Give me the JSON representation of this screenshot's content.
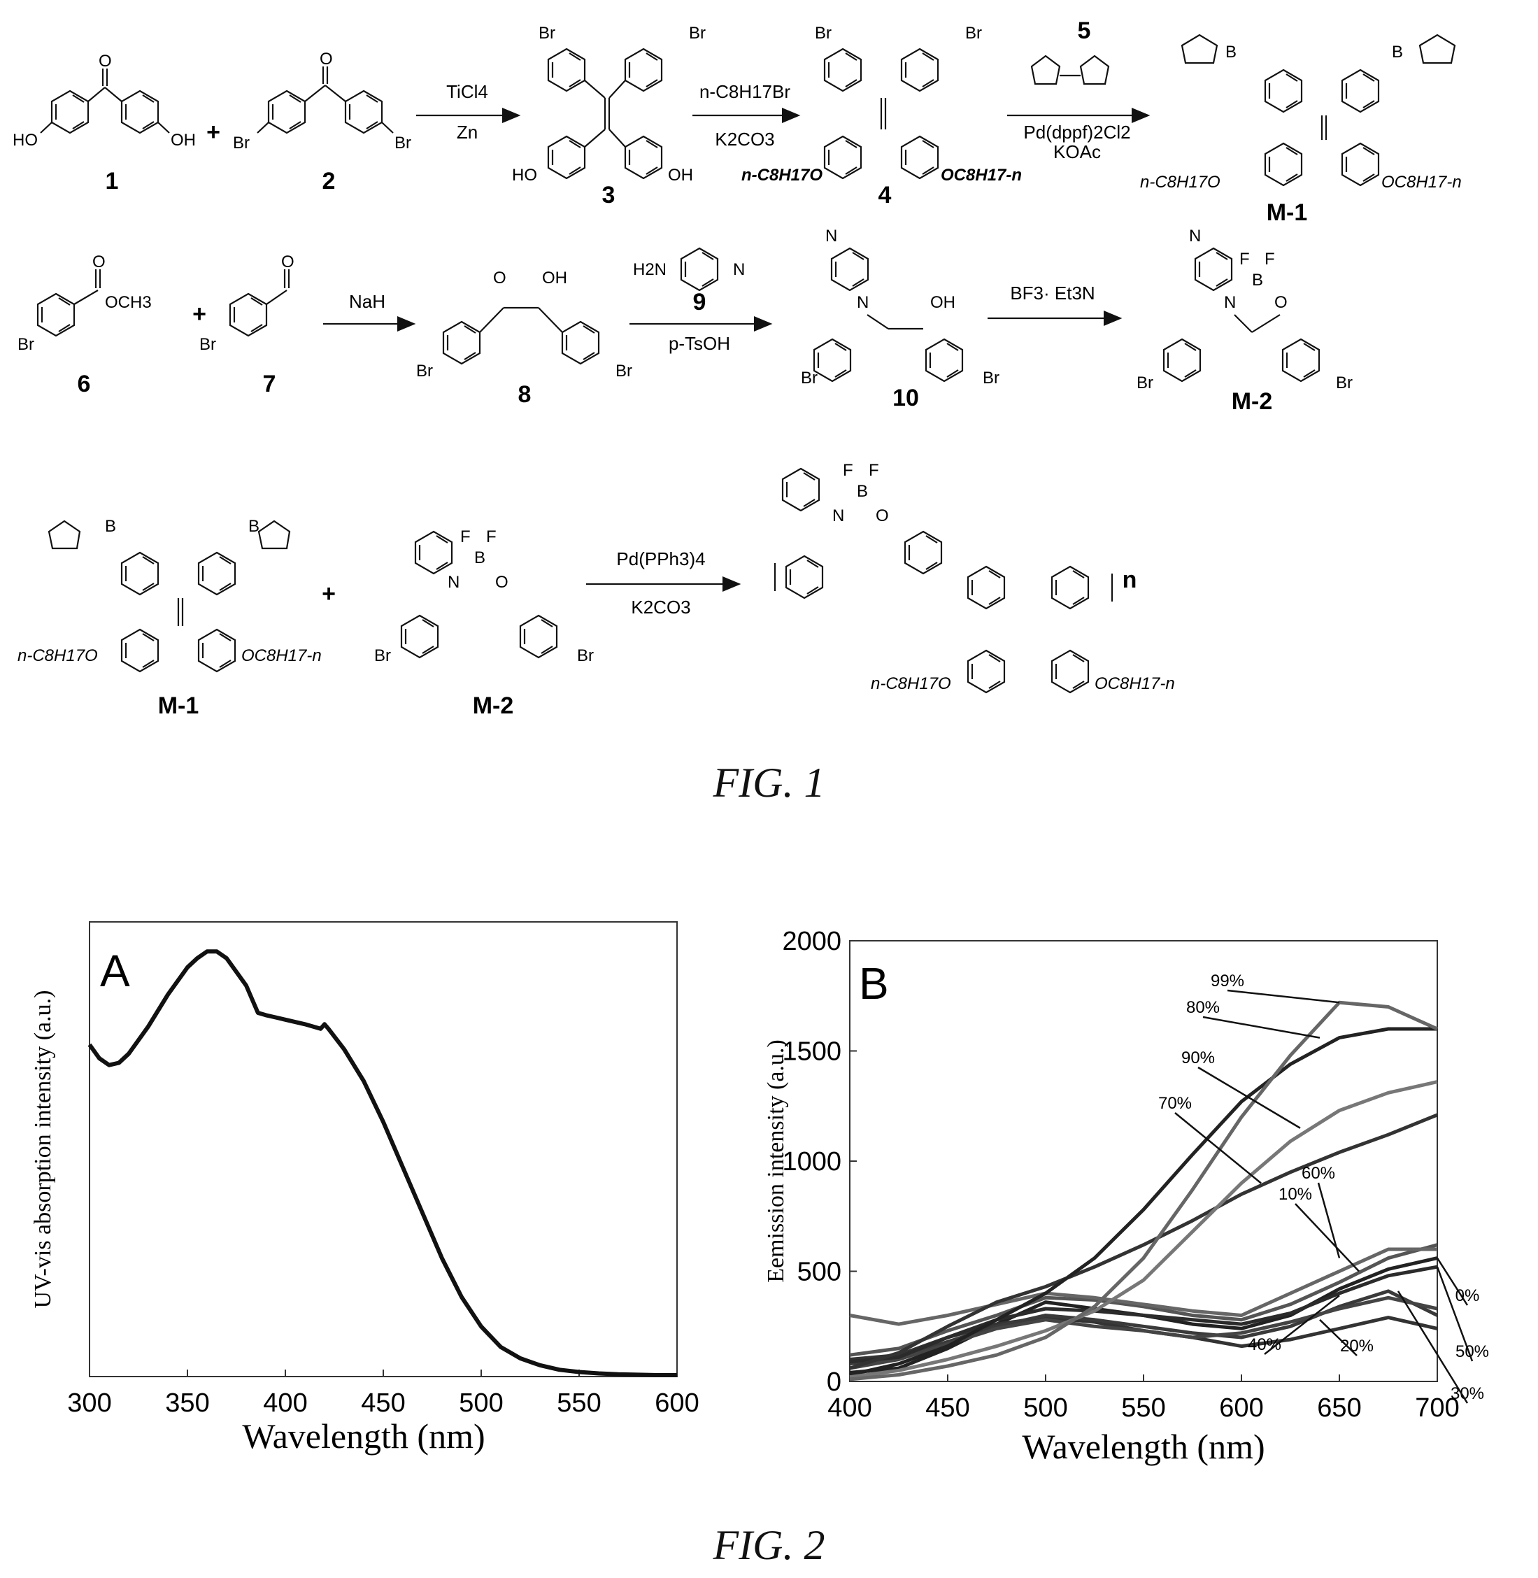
{
  "fig1": {
    "caption": "FIG. 1",
    "row1": {
      "labels": [
        "1",
        "2",
        "3",
        "4",
        "M-1"
      ],
      "plus": "+",
      "arrow1": {
        "top": "TiCl4",
        "bottom": "Zn"
      },
      "arrow2": {
        "top": "n-C8H17Br",
        "bottom": "K2CO3"
      },
      "arrow3": {
        "top_label": "5",
        "bottom1": "Pd(dppf)2Cl2",
        "bottom2": "KOAc"
      }
    },
    "row2": {
      "labels": [
        "6",
        "7",
        "8",
        "10",
        "M-2"
      ],
      "plus": "+",
      "arrow1": {
        "top": "NaH"
      },
      "arrow2": {
        "top_label": "9",
        "bottom": "p-TsOH"
      },
      "arrow3": {
        "top": "BF3· Et3N"
      }
    },
    "row3": {
      "labels": [
        "M-1",
        "M-2"
      ],
      "plus": "+",
      "arrow": {
        "top": "Pd(PPh3)4",
        "bottom": "K2CO3"
      },
      "repeat": "n"
    },
    "atoms": {
      "ho": "HO",
      "oh": "OH",
      "br": "Br",
      "o": "O",
      "b": "B",
      "f": "F",
      "n": "N",
      "h2n": "H2N",
      "och3": "OCH3",
      "oc8": "OC8H17-n",
      "c8o": "n-C8H17O"
    }
  },
  "fig2": {
    "caption": "FIG. 2",
    "panelA": {
      "panel_label": "A",
      "xlabel": "Wavelength (nm)",
      "ylabel": "UV-vis absorption intensity (a.u.)"
    },
    "panelB": {
      "panel_label": "B",
      "xlabel": "Wavelength (nm)",
      "ylabel": "Eemission intensity (a.u.)"
    }
  },
  "chart_data": [
    {
      "type": "line",
      "panel": "A",
      "xlabel": "Wavelength (nm)",
      "ylabel": "UV-vis absorption intensity (a.u.)",
      "xlim": [
        300,
        600
      ],
      "xticks": [
        300,
        350,
        400,
        450,
        500,
        550,
        600
      ],
      "series": [
        {
          "x": [
            300,
            305,
            310,
            315,
            320,
            330,
            340,
            350,
            355,
            360,
            365,
            370,
            375,
            380,
            384,
            386,
            390,
            395,
            400,
            410,
            418,
            420,
            422,
            430,
            440,
            450,
            460,
            470,
            480,
            490,
            500,
            510,
            520,
            530,
            540,
            550,
            560,
            570,
            580,
            590,
            600
          ],
          "y": [
            0.73,
            0.7,
            0.685,
            0.69,
            0.71,
            0.77,
            0.84,
            0.9,
            0.92,
            0.935,
            0.935,
            0.92,
            0.89,
            0.86,
            0.82,
            0.8,
            0.795,
            0.79,
            0.785,
            0.775,
            0.765,
            0.775,
            0.765,
            0.72,
            0.65,
            0.56,
            0.46,
            0.36,
            0.26,
            0.175,
            0.11,
            0.065,
            0.04,
            0.025,
            0.015,
            0.01,
            0.007,
            0.005,
            0.004,
            0.003,
            0.003
          ]
        }
      ]
    },
    {
      "type": "line",
      "panel": "B",
      "xlabel": "Wavelength (nm)",
      "ylabel": "Eemission intensity (a.u.)",
      "xlim": [
        400,
        700
      ],
      "ylim": [
        0,
        2000
      ],
      "xticks": [
        400,
        450,
        500,
        550,
        600,
        650,
        700
      ],
      "yticks": [
        0,
        500,
        1000,
        1500,
        2000
      ],
      "x": [
        400,
        425,
        450,
        475,
        500,
        525,
        550,
        575,
        600,
        625,
        650,
        675,
        700
      ],
      "series": [
        {
          "name": "0%",
          "values": [
            40,
            60,
            150,
            260,
            360,
            330,
            300,
            260,
            240,
            300,
            420,
            510,
            560
          ]
        },
        {
          "name": "10%",
          "values": [
            120,
            150,
            230,
            300,
            380,
            370,
            340,
            300,
            280,
            350,
            450,
            560,
            620
          ]
        },
        {
          "name": "20%",
          "values": [
            100,
            120,
            200,
            260,
            290,
            270,
            230,
            200,
            160,
            190,
            240,
            290,
            240
          ]
        },
        {
          "name": "30%",
          "values": [
            80,
            110,
            180,
            250,
            300,
            280,
            250,
            220,
            200,
            250,
            340,
            410,
            300
          ]
        },
        {
          "name": "40%",
          "values": [
            60,
            100,
            170,
            240,
            280,
            250,
            230,
            200,
            220,
            270,
            330,
            380,
            330
          ]
        },
        {
          "name": "50%",
          "values": [
            90,
            110,
            200,
            280,
            330,
            320,
            300,
            280,
            260,
            310,
            400,
            480,
            520
          ]
        },
        {
          "name": "60%",
          "values": [
            300,
            260,
            300,
            350,
            400,
            380,
            350,
            320,
            300,
            400,
            500,
            600,
            600
          ]
        },
        {
          "name": "70%",
          "values": [
            60,
            130,
            250,
            360,
            430,
            520,
            620,
            730,
            850,
            950,
            1040,
            1120,
            1210
          ]
        },
        {
          "name": "80%",
          "values": [
            30,
            80,
            160,
            280,
            400,
            560,
            780,
            1030,
            1270,
            1440,
            1560,
            1600,
            1600
          ]
        },
        {
          "name": "90%",
          "values": [
            20,
            50,
            100,
            160,
            230,
            320,
            460,
            680,
            900,
            1090,
            1230,
            1310,
            1360
          ]
        },
        {
          "name": "99%",
          "values": [
            10,
            30,
            70,
            120,
            200,
            340,
            560,
            870,
            1200,
            1480,
            1720,
            1700,
            1600
          ]
        }
      ],
      "annotations": [
        "99%",
        "80%",
        "90%",
        "70%",
        "10%",
        "60%",
        "0%",
        "50%",
        "40%",
        "20%",
        "30%"
      ]
    }
  ]
}
